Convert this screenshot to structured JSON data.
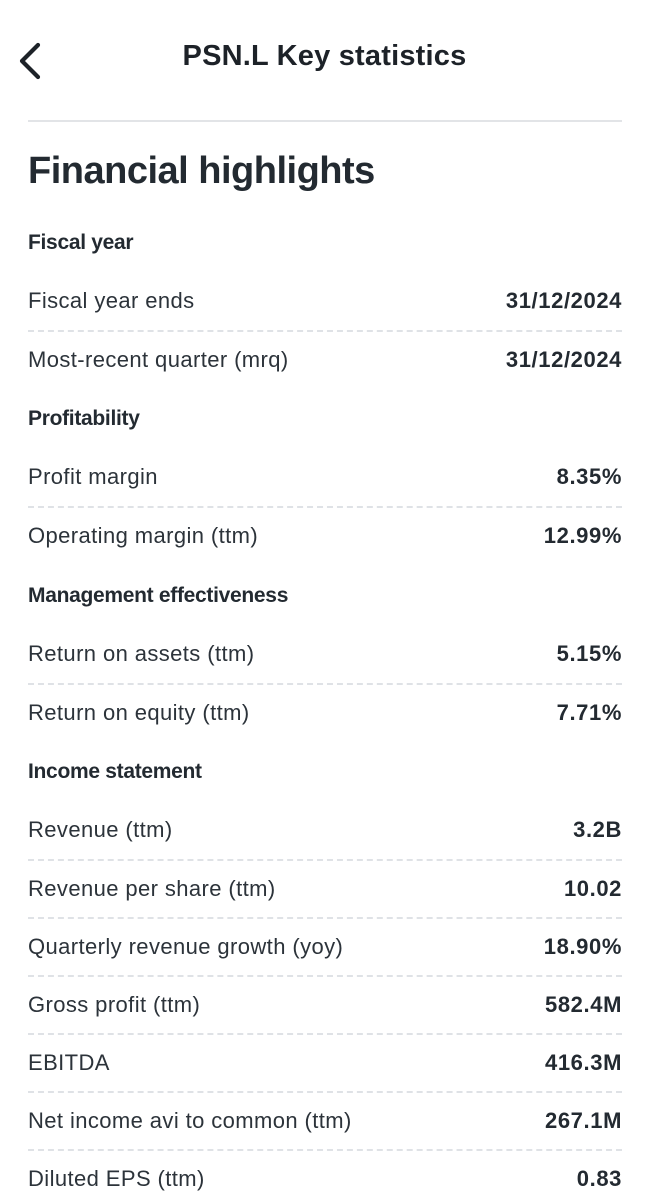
{
  "header": {
    "title": "PSN.L Key statistics"
  },
  "section_title": "Financial highlights",
  "groups": [
    {
      "title": "Fiscal year",
      "rows": [
        {
          "label": "Fiscal year ends",
          "value": "31/12/2024"
        },
        {
          "label": "Most-recent quarter (mrq)",
          "value": "31/12/2024"
        }
      ]
    },
    {
      "title": "Profitability",
      "rows": [
        {
          "label": "Profit margin",
          "value": "8.35%"
        },
        {
          "label": "Operating margin (ttm)",
          "value": "12.99%"
        }
      ]
    },
    {
      "title": "Management effectiveness",
      "rows": [
        {
          "label": "Return on assets (ttm)",
          "value": "5.15%"
        },
        {
          "label": "Return on equity (ttm)",
          "value": "7.71%"
        }
      ]
    },
    {
      "title": "Income statement",
      "rows": [
        {
          "label": "Revenue (ttm)",
          "value": "3.2B"
        },
        {
          "label": "Revenue per share (ttm)",
          "value": "10.02"
        },
        {
          "label": "Quarterly revenue growth (yoy)",
          "value": "18.90%"
        },
        {
          "label": "Gross profit (ttm)",
          "value": "582.4M"
        },
        {
          "label": "EBITDA",
          "value": "416.3M"
        },
        {
          "label": "Net income avi to common (ttm)",
          "value": "267.1M"
        },
        {
          "label": "Diluted EPS (ttm)",
          "value": "0.83"
        }
      ]
    }
  ],
  "icons": {
    "back": "chevron-left-icon"
  }
}
